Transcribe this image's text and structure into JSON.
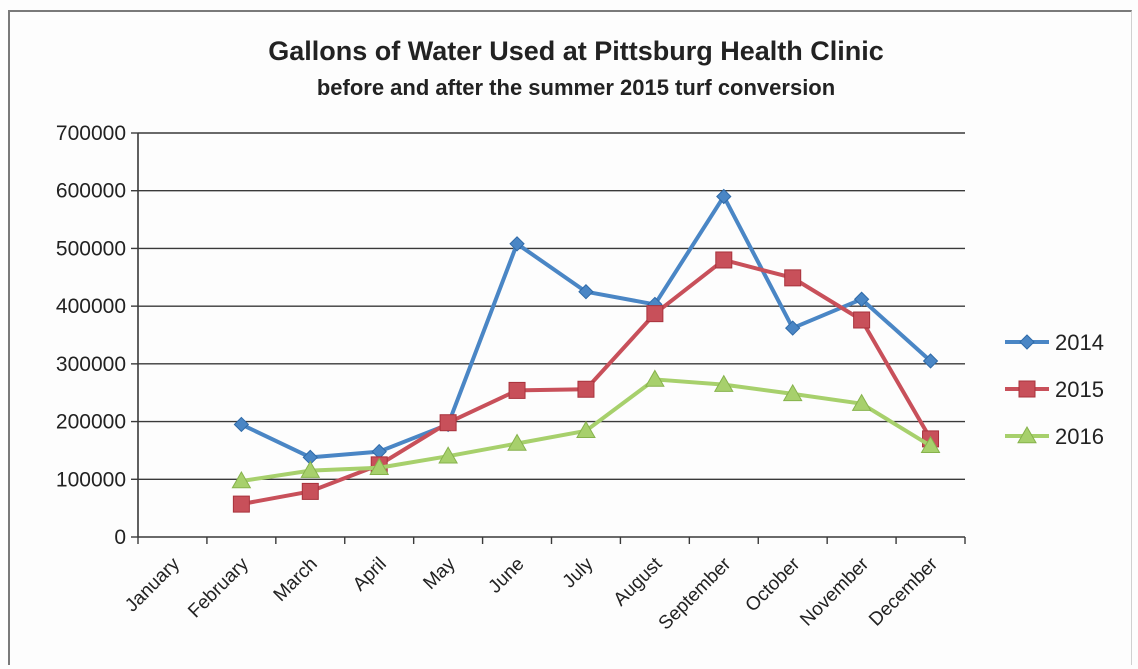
{
  "chart_data": {
    "type": "line",
    "title": "Gallons of Water Used at Pittsburg Health Clinic",
    "subtitle": "before and after the summer 2015 turf conversion",
    "xlabel": "",
    "ylabel": "",
    "categories": [
      "January",
      "February",
      "March",
      "April",
      "May",
      "June",
      "July",
      "August",
      "September",
      "October",
      "November",
      "December"
    ],
    "yticks": [
      "0",
      "100000",
      "200000",
      "300000",
      "400000",
      "500000",
      "600000",
      "700000"
    ],
    "ylim": [
      0,
      700000
    ],
    "grid": true,
    "legend_position": "right",
    "series": [
      {
        "name": "2014",
        "color": "#4a86c5",
        "marker": "diamond",
        "values": [
          null,
          195000,
          138000,
          148000,
          195000,
          508000,
          425000,
          403000,
          590000,
          362000,
          412000,
          305000
        ]
      },
      {
        "name": "2015",
        "color": "#c8505a",
        "marker": "square",
        "values": [
          null,
          57000,
          79000,
          125000,
          198000,
          254000,
          256000,
          387000,
          480000,
          449000,
          376000,
          170000
        ]
      },
      {
        "name": "2016",
        "color": "#a7d06c",
        "marker": "triangle",
        "values": [
          null,
          97000,
          115000,
          120000,
          140000,
          162000,
          184000,
          273000,
          264000,
          248000,
          231000,
          158000
        ]
      }
    ]
  }
}
